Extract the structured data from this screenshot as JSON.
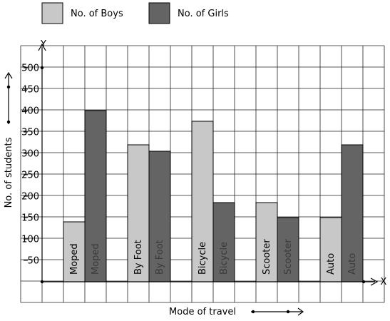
{
  "chart_data": {
    "type": "bar",
    "categories": [
      "Moped",
      "By Foot",
      "Bicycle",
      "Scooter",
      "Auto"
    ],
    "series": [
      {
        "name": "No. of Boys",
        "values": [
          140,
          320,
          375,
          185,
          150
        ],
        "color": "#c8c8c8",
        "text_color": "#000000"
      },
      {
        "name": "No. of Girls",
        "values": [
          400,
          305,
          185,
          150,
          320
        ],
        "color": "#646464",
        "text_color": "#3a3a3a"
      }
    ],
    "xlabel": "Mode of travel",
    "ylabel": "No. of students",
    "y_axis_name": "Y",
    "x_axis_name": "X",
    "yticks": [
      50,
      100,
      150,
      200,
      250,
      300,
      350,
      400,
      450,
      500
    ],
    "ytick_labels": [
      "50",
      "100",
      "150",
      "200",
      "250",
      "300",
      "350",
      "400",
      "450",
      "500"
    ],
    "ylim": [
      0,
      500
    ],
    "grid": true,
    "legend_position": "top-left",
    "bar_label_orientation": "vertical"
  }
}
